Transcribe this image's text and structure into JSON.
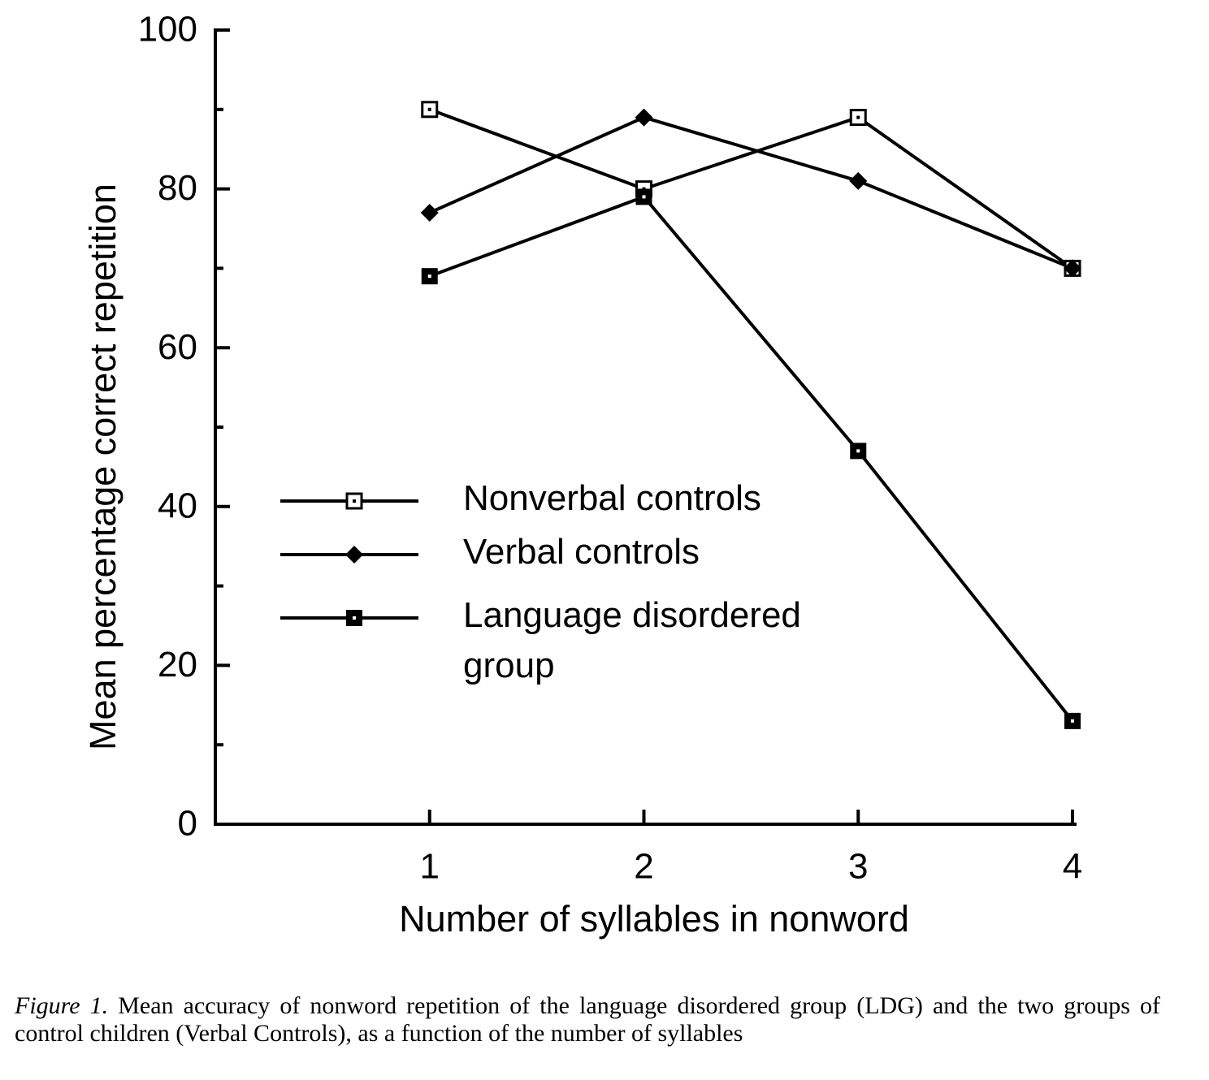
{
  "chart_data": {
    "type": "line",
    "x": [
      1,
      2,
      3,
      4
    ],
    "xlim": [
      0,
      4
    ],
    "xticks": [
      1,
      2,
      3,
      4
    ],
    "ylim": [
      0,
      100
    ],
    "yticks": [
      0,
      20,
      40,
      60,
      80,
      100
    ],
    "minor_yticks": [
      10,
      30,
      50,
      70,
      90
    ],
    "x_label": "Number of syllables in nonword",
    "y_label": "Mean percentage correct repetition",
    "series": [
      {
        "name": "Nonverbal controls",
        "color": "#000000",
        "marker": "open-square",
        "values": [
          90,
          80,
          89,
          70
        ]
      },
      {
        "name": "Verbal controls",
        "color": "#000000",
        "marker": "diamond",
        "values": [
          77,
          89,
          81,
          70
        ]
      },
      {
        "name": "Language disordered group",
        "color": "#000000",
        "marker": "filled-square",
        "values": [
          69,
          79,
          47,
          13
        ]
      }
    ],
    "caption": {
      "label": "Figure 1.",
      "text": "Mean accuracy of nonword repetition of the language disordered group (LDG) and the two groups of control children (Verbal Controls), as a function of the number of syllables"
    }
  }
}
